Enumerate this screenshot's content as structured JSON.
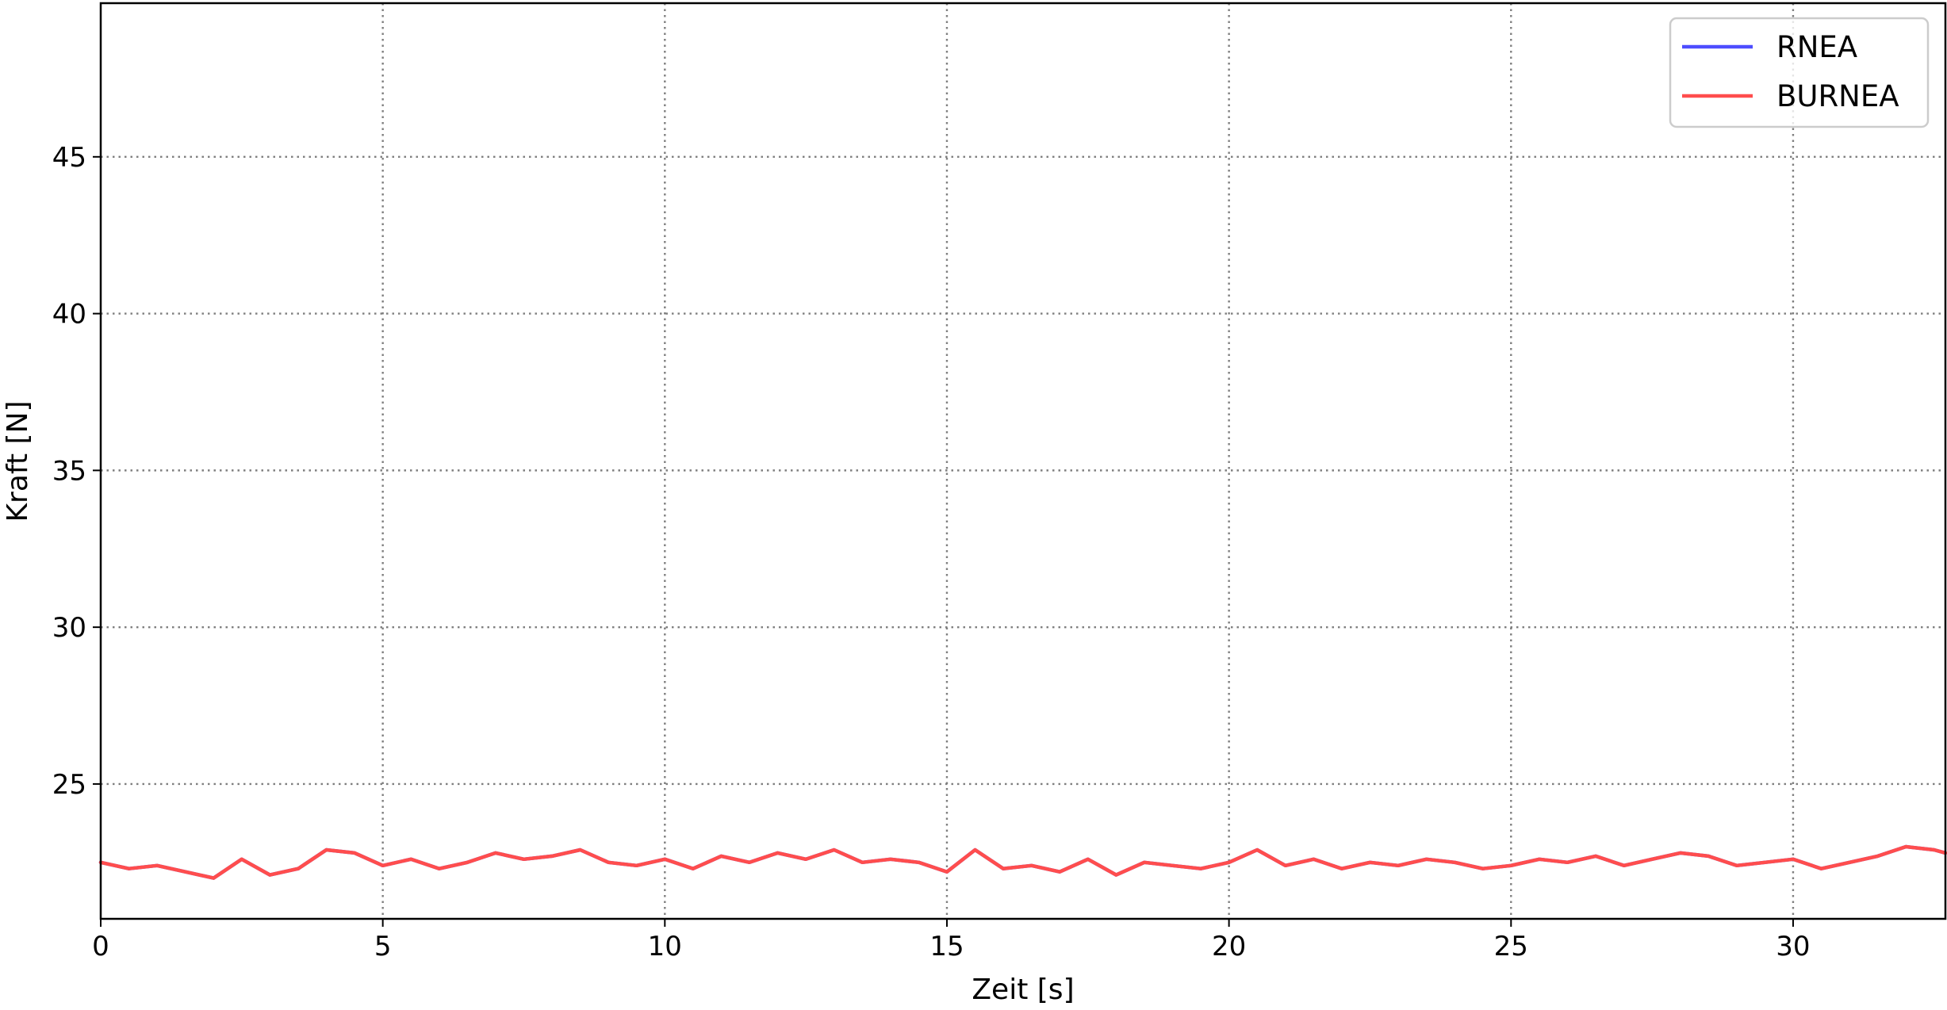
{
  "chart_data": {
    "type": "line",
    "title": "",
    "xlabel": "Zeit [s]",
    "ylabel": "Kraft [N]",
    "xlim": [
      0,
      32.7
    ],
    "ylim": [
      20.7,
      49.9
    ],
    "xticks": [
      0,
      5,
      10,
      15,
      20,
      25,
      30
    ],
    "yticks": [
      25,
      30,
      35,
      40,
      45
    ],
    "grid": true,
    "legend_position": "top-right",
    "series": [
      {
        "name": "RNEA",
        "color": "#4d4dff",
        "x": [
          0,
          0.5,
          1,
          1.5,
          2,
          2.5,
          3,
          3.5,
          4,
          4.5,
          5,
          5.5,
          6,
          6.5,
          7,
          7.5,
          8,
          8.5,
          9,
          9.5,
          10,
          10.5,
          11,
          11.5,
          12,
          12.5,
          13,
          13.5,
          14,
          14.5,
          15,
          15.5,
          16,
          16.5,
          17,
          17.5,
          18,
          18.5,
          19,
          19.5,
          20,
          20.5,
          21,
          21.5,
          22,
          22.5,
          23,
          23.5,
          24,
          24.5,
          25,
          25.5,
          26,
          26.5,
          27,
          27.5,
          28,
          28.5,
          29,
          29.5,
          30,
          30.5,
          31,
          31.5,
          32,
          32.5,
          32.7
        ],
        "y": [
          22.5,
          22.3,
          22.4,
          22.2,
          22.0,
          22.6,
          22.1,
          22.3,
          22.9,
          22.8,
          22.4,
          22.6,
          22.3,
          22.5,
          22.8,
          22.6,
          22.7,
          22.9,
          22.5,
          22.4,
          22.6,
          22.3,
          22.7,
          22.5,
          22.8,
          22.6,
          22.9,
          22.5,
          22.6,
          22.5,
          22.2,
          22.9,
          22.3,
          22.4,
          22.2,
          22.6,
          22.1,
          22.5,
          22.4,
          22.3,
          22.5,
          22.9,
          22.4,
          22.6,
          22.3,
          22.5,
          22.4,
          22.6,
          22.5,
          22.3,
          22.4,
          22.6,
          22.5,
          22.7,
          22.4,
          22.6,
          22.8,
          22.7,
          22.4,
          22.5,
          22.6,
          22.3,
          22.5,
          22.7,
          23.0,
          22.9,
          22.8
        ]
      },
      {
        "name": "BURNEA",
        "color": "#ff4d4d",
        "x": [
          0,
          0.5,
          1,
          1.5,
          2,
          2.5,
          3,
          3.5,
          4,
          4.5,
          5,
          5.5,
          6,
          6.5,
          7,
          7.5,
          8,
          8.5,
          9,
          9.5,
          10,
          10.5,
          11,
          11.5,
          12,
          12.5,
          13,
          13.5,
          14,
          14.5,
          15,
          15.5,
          16,
          16.5,
          17,
          17.5,
          18,
          18.5,
          19,
          19.5,
          20,
          20.5,
          21,
          21.5,
          22,
          22.5,
          23,
          23.5,
          24,
          24.5,
          25,
          25.5,
          26,
          26.5,
          27,
          27.5,
          28,
          28.5,
          29,
          29.5,
          30,
          30.5,
          31,
          31.5,
          32,
          32.5,
          32.7
        ],
        "y": [
          22.5,
          22.3,
          22.4,
          22.2,
          22.0,
          22.6,
          22.1,
          22.3,
          22.9,
          22.8,
          22.4,
          22.6,
          22.3,
          22.5,
          22.8,
          22.6,
          22.7,
          22.9,
          22.5,
          22.4,
          22.6,
          22.3,
          22.7,
          22.5,
          22.8,
          22.6,
          22.9,
          22.5,
          22.6,
          22.5,
          22.2,
          22.9,
          22.3,
          22.4,
          22.2,
          22.6,
          22.1,
          22.5,
          22.4,
          22.3,
          22.5,
          22.9,
          22.4,
          22.6,
          22.3,
          22.5,
          22.4,
          22.6,
          22.5,
          22.3,
          22.4,
          22.6,
          22.5,
          22.7,
          22.4,
          22.6,
          22.8,
          22.7,
          22.4,
          22.5,
          22.6,
          22.3,
          22.5,
          22.7,
          23.0,
          22.9,
          22.8
        ]
      }
    ]
  }
}
